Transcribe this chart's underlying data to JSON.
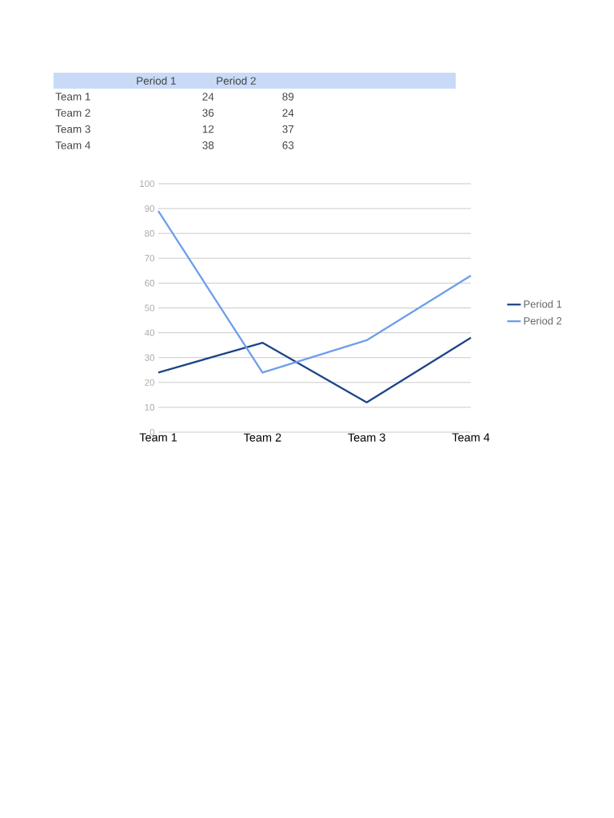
{
  "chart_data": [
    {
      "type": "other",
      "categories": [
        "Team 1",
        "Team 2",
        "Team 3",
        "Team 4"
      ],
      "series": [
        {
          "name": "Period 1",
          "values": [
            24,
            36,
            12,
            38
          ]
        },
        {
          "name": "Period 2",
          "values": [
            89,
            24,
            37,
            63
          ]
        }
      ],
      "data_labels": true
    },
    {
      "type": "line",
      "categories": [
        "Team 1",
        "Team 2",
        "Team 3",
        "Team 4"
      ],
      "series": [
        {
          "name": "Period 1",
          "color": "#1c4587",
          "values": [
            24,
            36,
            12,
            38
          ]
        },
        {
          "name": "Period 2",
          "color": "#6d9eeb",
          "values": [
            89,
            24,
            37,
            63
          ]
        }
      ],
      "ylim": [
        0,
        100
      ],
      "yticks": [
        0,
        10,
        20,
        30,
        40,
        50,
        60,
        70,
        80,
        90,
        100
      ],
      "grid": "y",
      "legend": "right"
    }
  ]
}
